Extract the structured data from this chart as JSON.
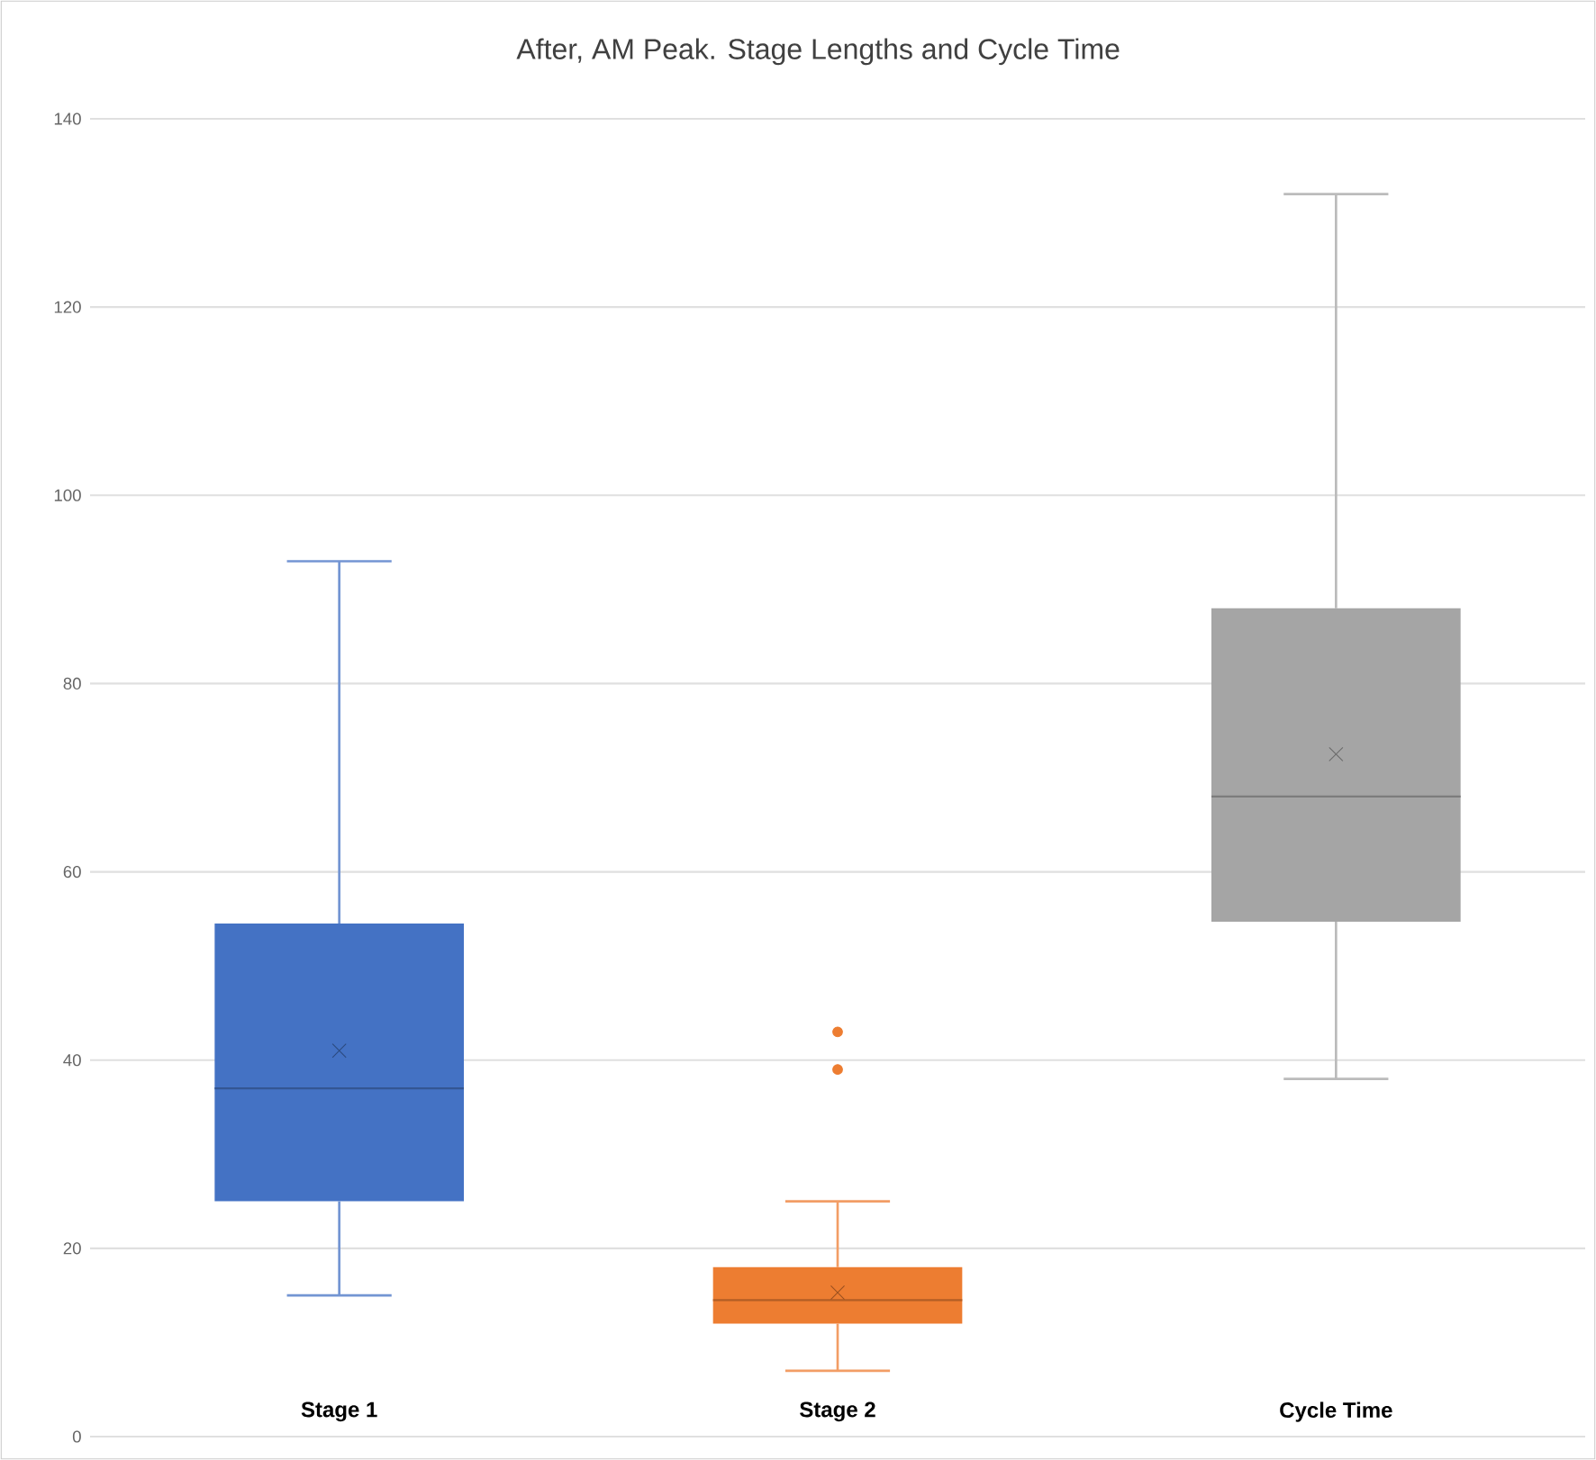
{
  "chart_data": {
    "type": "box",
    "title": "After, AM Peak. Stage Lengths and Cycle Time",
    "categories": [
      "Stage 1",
      "Stage 2",
      "Cycle Time"
    ],
    "colors": [
      "#4472c4",
      "#ed7d31",
      "#a5a5a5"
    ],
    "boxes": [
      {
        "low": 15,
        "q1": 25,
        "median": 37,
        "q3": 54.5,
        "high": 93,
        "mean": 41
      },
      {
        "low": 7,
        "q1": 12,
        "median": 14.5,
        "q3": 18,
        "high": 25,
        "mean": 15.3,
        "outliers": [
          43,
          39
        ]
      },
      {
        "low": 38,
        "q1": 54.7,
        "median": 68,
        "q3": 88,
        "high": 132,
        "mean": 72.5
      }
    ],
    "ylim": [
      0,
      140
    ],
    "yticks": [
      0,
      20,
      40,
      60,
      80,
      100,
      120,
      140
    ],
    "grid": "y"
  }
}
